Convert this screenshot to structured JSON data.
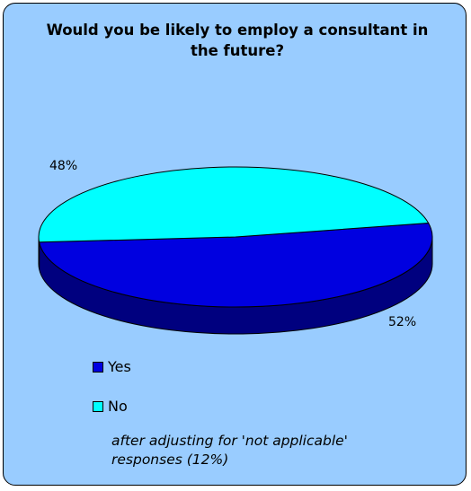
{
  "chart_data": {
    "type": "pie",
    "title": "Would you be likely to employ a consultant in the future?",
    "categories": [
      "Yes",
      "No"
    ],
    "values": [
      52,
      48
    ],
    "value_labels": [
      "52%",
      "48%"
    ],
    "colors": [
      "#0000e0",
      "#00ffff"
    ],
    "side_colors": [
      "#00007f",
      "#008080"
    ],
    "legend": {
      "position": "bottom-left",
      "entries": [
        "Yes",
        "No"
      ]
    },
    "note": "after adjusting for 'not applicable' responses (12%)"
  }
}
